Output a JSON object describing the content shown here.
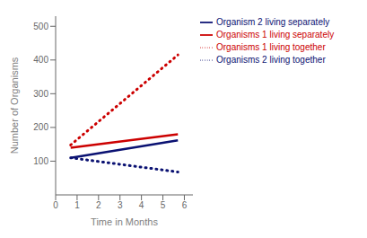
{
  "chart_data": {
    "type": "line",
    "x": [
      0.7,
      5.7
    ],
    "xlabel": "Time in Months",
    "ylabel": "Number of Organisms",
    "xlim": [
      0,
      6.4
    ],
    "ylim": [
      0,
      530
    ],
    "xticks": [
      0,
      1,
      2,
      3,
      4,
      5,
      6
    ],
    "yticks": [
      100,
      200,
      300,
      400,
      500
    ],
    "grid": false,
    "legend": "right",
    "series": [
      {
        "name": "Organisms 1 living separately",
        "color": "#cc0000",
        "values": [
          140,
          180
        ],
        "line_style": "solid"
      },
      {
        "name": "Organism 2 living separately",
        "color": "#0a1172",
        "values": [
          110,
          162
        ],
        "line_style": "solid"
      },
      {
        "name": "Organisms 1 living together",
        "color": "#cc0000",
        "values": [
          148,
          415
        ],
        "line_style": "dotted"
      },
      {
        "name": "Organisms 2 living together",
        "color": "#0a1172",
        "values": [
          110,
          68
        ],
        "line_style": "dotted"
      }
    ]
  }
}
